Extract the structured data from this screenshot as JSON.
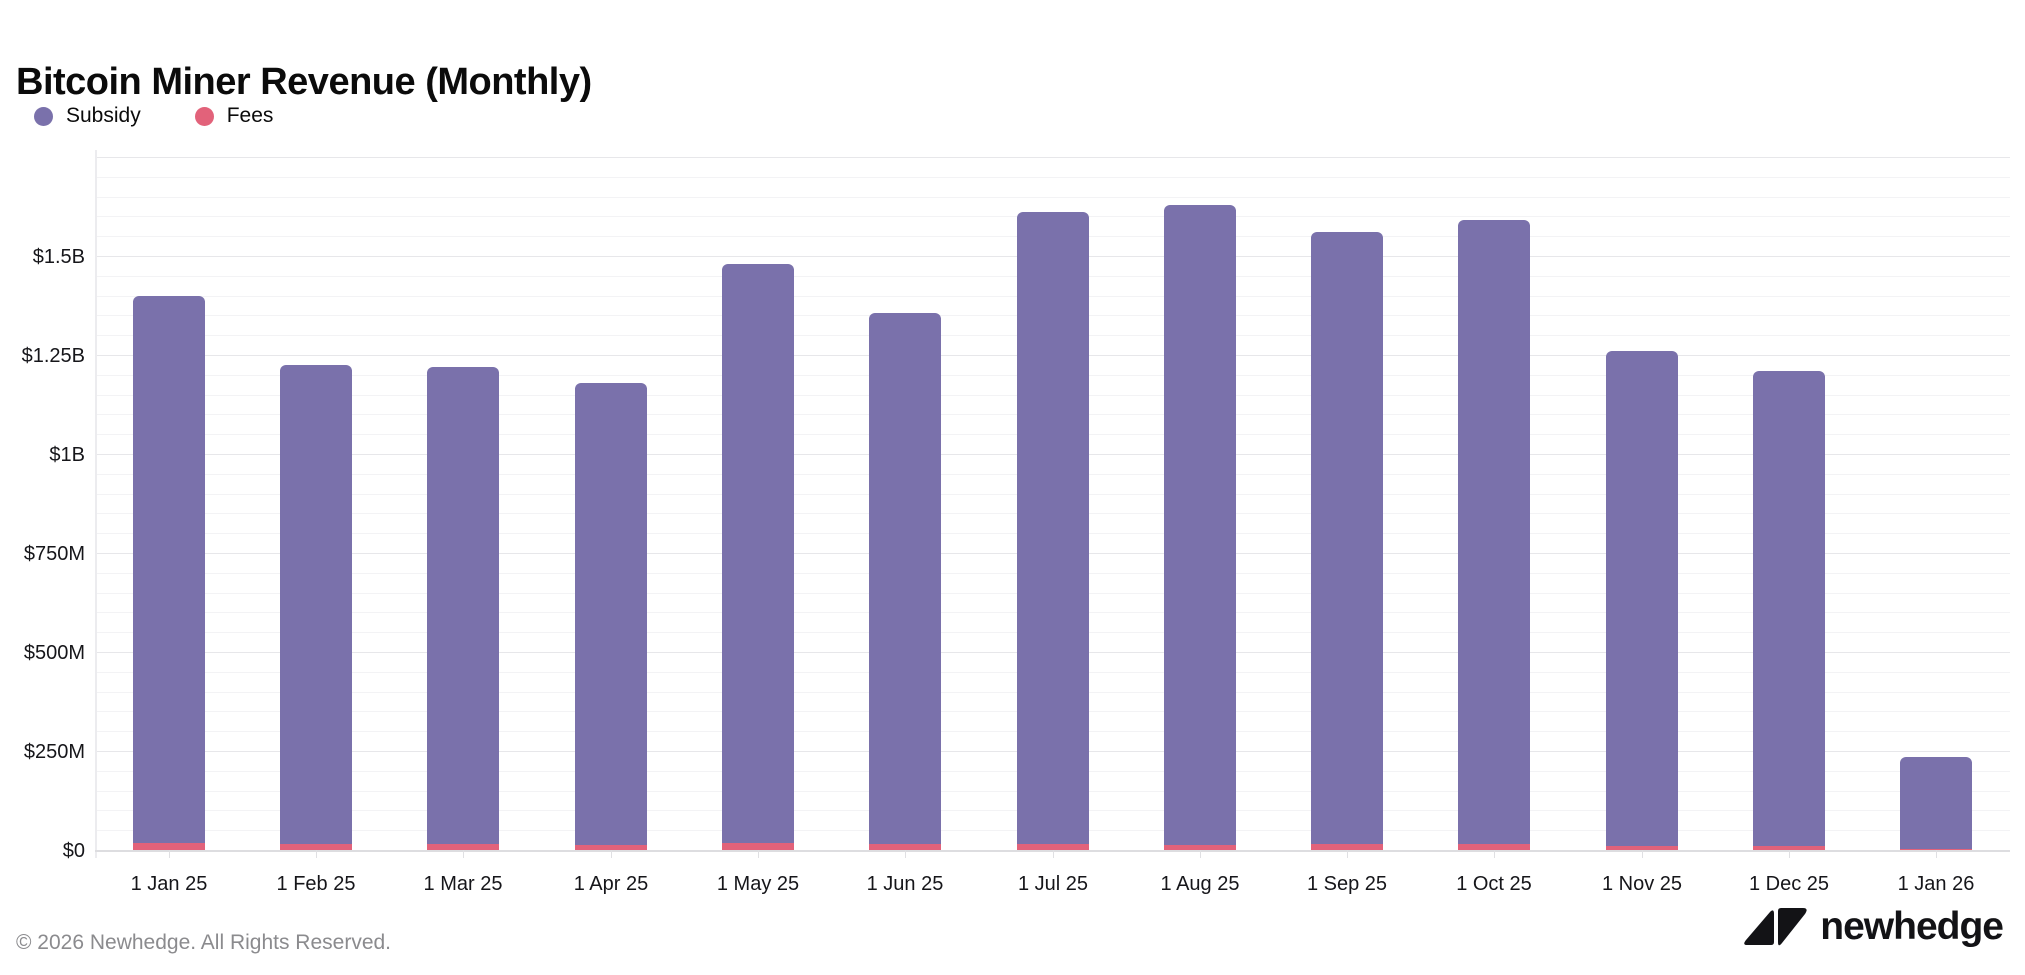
{
  "page": {
    "title": "Bitcoin Miner Revenue (Monthly)"
  },
  "legend": [
    {
      "label": "Subsidy",
      "color": "#7a71ab"
    },
    {
      "label": "Fees",
      "color": "#e2627a"
    }
  ],
  "colors": {
    "subsidy": "#7a71ab",
    "fees": "#e2627a",
    "grid_minor": "#f3f3f5",
    "grid_major": "#e7e7ea",
    "axis_line": "#dddde0",
    "text": "#16161a",
    "footer_text": "#8b8b8e",
    "logo": "#131316"
  },
  "chart_data": {
    "type": "bar",
    "stacked": true,
    "title": "Bitcoin Miner Revenue (Monthly)",
    "value_unit": "USD millions",
    "categories": [
      "1 Jan 25",
      "1 Feb 25",
      "1 Mar 25",
      "1 Apr 25",
      "1 May 25",
      "1 Jun 25",
      "1 Jul 25",
      "1 Aug 25",
      "1 Sep 25",
      "1 Oct 25",
      "1 Nov 25",
      "1 Dec 25",
      "1 Jan 26"
    ],
    "series": [
      {
        "name": "Fees",
        "color": "#e2627a",
        "values": [
          18,
          15,
          15,
          13,
          18,
          15,
          15,
          13,
          15,
          15,
          10,
          10,
          2
        ]
      },
      {
        "name": "Subsidy",
        "color": "#7a71ab",
        "values": [
          1382,
          1210,
          1205,
          1167,
          1462,
          1340,
          1595,
          1617,
          1545,
          1575,
          1250,
          1200,
          233
        ]
      }
    ],
    "totals": [
      1400,
      1225,
      1220,
      1180,
      1480,
      1355,
      1610,
      1630,
      1560,
      1590,
      1260,
      1210,
      235
    ],
    "xlabel": "",
    "ylabel": "",
    "ylim": [
      0,
      1750
    ],
    "y_ticks": [
      {
        "value": 0,
        "label": "$0"
      },
      {
        "value": 250,
        "label": "$250M"
      },
      {
        "value": 500,
        "label": "$500M"
      },
      {
        "value": 750,
        "label": "$750M"
      },
      {
        "value": 1000,
        "label": "$1B"
      },
      {
        "value": 1250,
        "label": "$1.25B"
      },
      {
        "value": 1500,
        "label": "$1.5B"
      }
    ],
    "grid": {
      "minor_step": 50,
      "major_step": 250,
      "horizontal": true,
      "vertical": false
    },
    "legend_position": "top-left"
  },
  "footer": {
    "copyright": "© 2026 Newhedge. All Rights Reserved.",
    "brand": "newhedge"
  }
}
